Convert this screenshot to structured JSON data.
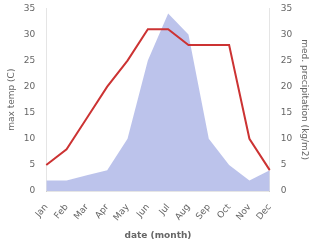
{
  "chart_data": {
    "type": "line",
    "categories": [
      "Jan",
      "Feb",
      "Mar",
      "Apr",
      "May",
      "Jun",
      "Jul",
      "Aug",
      "Sep",
      "Oct",
      "Nov",
      "Dec"
    ],
    "series": [
      {
        "type": "area",
        "color": "#b0b8e8",
        "axis": "y2",
        "values": [
          2,
          2,
          3,
          4,
          10,
          25,
          34,
          30,
          10,
          5,
          2,
          4
        ]
      },
      {
        "type": "line",
        "color": "#cc3333",
        "values": [
          5,
          8,
          14,
          20,
          25,
          31,
          31,
          28,
          28,
          28,
          10,
          4
        ]
      }
    ],
    "xlabel": "date (month)",
    "ylabel": "max temp (C)",
    "y2label": "med. precipitation (kg/m2)",
    "ylim": [
      0,
      35
    ],
    "yticks": [
      0,
      5,
      10,
      15,
      20,
      25,
      30,
      35
    ],
    "y2lim": [
      0,
      35
    ],
    "y2ticks": [
      0,
      5,
      10,
      15,
      20,
      25,
      30,
      35
    ],
    "grid": false
  }
}
